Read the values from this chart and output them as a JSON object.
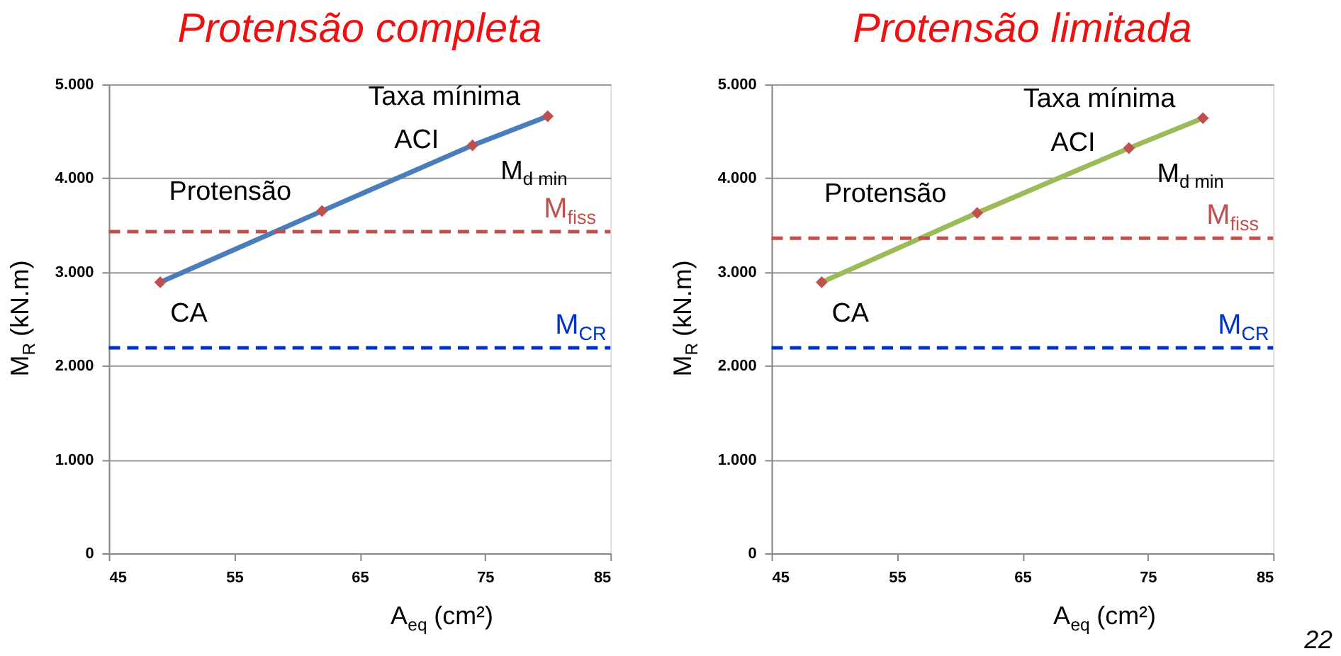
{
  "chart_data": [
    {
      "type": "line",
      "title": "Protensão completa",
      "xlabel": "A$_{eq}$ (cm²)",
      "ylabel": "M$_{R}$ (kN.m)",
      "x": [
        49.1,
        62.0,
        74.0,
        80.0
      ],
      "series": [
        {
          "color": "#4a7ebb",
          "values": [
            2890,
            3650,
            4350,
            4660
          ],
          "marker": "none",
          "line_style": "solid"
        },
        {
          "type": "scatter",
          "color": "#c0504d",
          "values": [
            2890,
            3650,
            4350,
            4660
          ],
          "marker": "diamond"
        }
      ],
      "xlim": [
        45,
        85
      ],
      "xticks": [
        45,
        55,
        65,
        75,
        85
      ],
      "ylim": [
        0,
        5000
      ],
      "yticks": [
        {
          "value": 0,
          "label": "0"
        },
        {
          "value": 1000,
          "label": "1.000"
        },
        {
          "value": 2000,
          "label": "2.000"
        },
        {
          "value": 3000,
          "label": "3.000"
        },
        {
          "value": 4000,
          "label": "4.000"
        },
        {
          "value": 5000,
          "label": "5.000"
        }
      ],
      "grid": "y",
      "ref_lines": [
        {
          "axis": "y",
          "value": 3430,
          "label": "M$_{fiss}$",
          "color": "#c0504d",
          "line_style": "dashed"
        },
        {
          "axis": "y",
          "value": 2190,
          "label": "M$_{CR}$",
          "color": "#0033cc",
          "line_style": "dashed"
        }
      ],
      "annotations": [
        {
          "text": "Taxa mínima",
          "x": 80.0,
          "y": 4660
        },
        {
          "text": "ACI",
          "x": 74.0,
          "y": 4350
        },
        {
          "text": "M$_{d min}$",
          "x": 74.0,
          "y": 4350
        },
        {
          "text": "Protensão",
          "x": 62.0,
          "y": 3650
        },
        {
          "text": "CA",
          "x": 49.1,
          "y": 2890
        }
      ]
    },
    {
      "type": "line",
      "title": "Protensão limitada",
      "xlabel": "A$_{eq}$ (cm²)",
      "ylabel": "M$_{R}$ (kN.m)",
      "x": [
        49.0,
        61.4,
        73.5,
        79.4
      ],
      "series": [
        {
          "color": "#9bbb59",
          "values": [
            2890,
            3630,
            4320,
            4640
          ],
          "marker": "none",
          "line_style": "solid"
        },
        {
          "type": "scatter",
          "color": "#c0504d",
          "values": [
            2890,
            3630,
            4320,
            4640
          ],
          "marker": "diamond"
        }
      ],
      "xlim": [
        45,
        85
      ],
      "xticks": [
        45,
        55,
        65,
        75,
        85
      ],
      "ylim": [
        0,
        5000
      ],
      "yticks": [
        {
          "value": 0,
          "label": "0"
        },
        {
          "value": 1000,
          "label": "1.000"
        },
        {
          "value": 2000,
          "label": "2.000"
        },
        {
          "value": 3000,
          "label": "3.000"
        },
        {
          "value": 4000,
          "label": "4.000"
        },
        {
          "value": 5000,
          "label": "5.000"
        }
      ],
      "grid": "y",
      "ref_lines": [
        {
          "axis": "y",
          "value": 3360,
          "label": "M$_{fiss}$",
          "color": "#c0504d",
          "line_style": "dashed"
        },
        {
          "axis": "y",
          "value": 2190,
          "label": "M$_{CR}$",
          "color": "#0033cc",
          "line_style": "dashed"
        }
      ],
      "annotations": [
        {
          "text": "Taxa mínima",
          "x": 79.4,
          "y": 4640
        },
        {
          "text": "ACI",
          "x": 73.5,
          "y": 4320
        },
        {
          "text": "M$_{d min}$",
          "x": 73.5,
          "y": 4320
        },
        {
          "text": "Protensão",
          "x": 61.4,
          "y": 3630
        },
        {
          "text": "CA",
          "x": 49.0,
          "y": 2890
        },
        "22"
      ]
    }
  ]
}
